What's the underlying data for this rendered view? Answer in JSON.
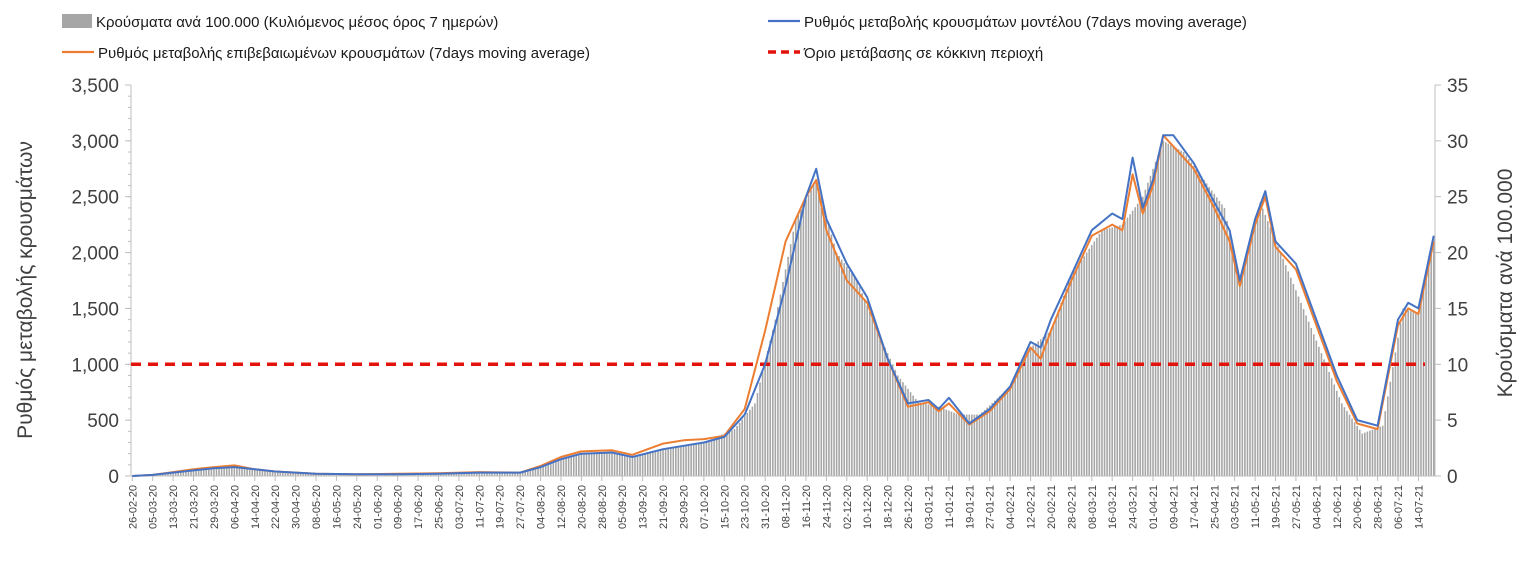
{
  "chart_data": {
    "type": "bar+line",
    "title": "",
    "ylabel_left": "Ρυθμός μεταβολής κρουσμάτων",
    "ylabel_right": "Κρούσματα ανά 100.000",
    "ylim_left": [
      0,
      3500
    ],
    "ylim_right": [
      0,
      35
    ],
    "yticks_left": [
      "0",
      "500",
      "1,000",
      "1,500",
      "2,000",
      "2,500",
      "3,000",
      "3,500"
    ],
    "yticks_right": [
      "0",
      "5",
      "10",
      "15",
      "20",
      "25",
      "30",
      "35"
    ],
    "x_start": "2020-02-26",
    "x_end": "2021-07-20",
    "xticks": [
      "26-02-20",
      "05-03-20",
      "13-03-20",
      "21-03-20",
      "29-03-20",
      "06-04-20",
      "14-04-20",
      "22-04-20",
      "30-04-20",
      "08-05-20",
      "16-05-20",
      "24-05-20",
      "01-06-20",
      "09-06-20",
      "17-06-20",
      "25-06-20",
      "03-07-20",
      "11-07-20",
      "19-07-20",
      "27-07-20",
      "04-08-20",
      "12-08-20",
      "20-08-20",
      "28-08-20",
      "05-09-20",
      "13-09-20",
      "21-09-20",
      "29-09-20",
      "07-10-20",
      "15-10-20",
      "23-10-20",
      "31-10-20",
      "08-11-20",
      "16-11-20",
      "24-11-20",
      "02-12-20",
      "10-12-20",
      "18-12-20",
      "26-12-20",
      "03-01-21",
      "11-01-21",
      "19-01-21",
      "27-01-21",
      "04-02-21",
      "12-02-21",
      "20-02-21",
      "28-02-21",
      "08-03-21",
      "16-03-21",
      "24-03-21",
      "01-04-21",
      "09-04-21",
      "17-04-21",
      "25-04-21",
      "03-05-21",
      "11-05-21",
      "19-05-21",
      "27-05-21",
      "04-06-21",
      "12-06-21",
      "20-06-21",
      "28-06-21",
      "06-07-21",
      "14-07-21"
    ],
    "legend_position": "top",
    "grid": false,
    "threshold": {
      "name": "Όριο μετάβασης σε κόκκινη περιοχή",
      "value": 1000,
      "color": "#e3120b"
    },
    "series": [
      {
        "name": "Κρούσματα ανά 100.000 (Κυλιόμενος μέσος όρος 7 ημερών)",
        "kind": "bar",
        "axis": "right",
        "color": "#a6a6a6",
        "points": [
          [
            "2020-02-26",
            0
          ],
          [
            "2020-03-13",
            0.3
          ],
          [
            "2020-03-29",
            0.7
          ],
          [
            "2020-04-06",
            0.8
          ],
          [
            "2020-04-22",
            0.3
          ],
          [
            "2020-05-16",
            0.1
          ],
          [
            "2020-06-09",
            0.1
          ],
          [
            "2020-07-19",
            0.3
          ],
          [
            "2020-07-27",
            0.3
          ],
          [
            "2020-08-08",
            1.2
          ],
          [
            "2020-08-20",
            2.0
          ],
          [
            "2020-09-01",
            2.1
          ],
          [
            "2020-09-09",
            1.6
          ],
          [
            "2020-09-21",
            2.4
          ],
          [
            "2020-10-07",
            3.0
          ],
          [
            "2020-10-19",
            4.2
          ],
          [
            "2020-10-27",
            6.5
          ],
          [
            "2020-11-04",
            14.0
          ],
          [
            "2020-11-12",
            23.0
          ],
          [
            "2020-11-20",
            26.5
          ],
          [
            "2020-11-28",
            20.0
          ],
          [
            "2020-12-06",
            17.5
          ],
          [
            "2020-12-14",
            13.0
          ],
          [
            "2020-12-22",
            9.0
          ],
          [
            "2020-12-30",
            6.6
          ],
          [
            "2021-01-07",
            6.2
          ],
          [
            "2021-01-15",
            5.5
          ],
          [
            "2021-01-23",
            5.5
          ],
          [
            "2021-02-04",
            8.0
          ],
          [
            "2021-02-12",
            11.5
          ],
          [
            "2021-02-20",
            13.0
          ],
          [
            "2021-02-28",
            18.0
          ],
          [
            "2021-03-12",
            22.0
          ],
          [
            "2021-03-20",
            22.5
          ],
          [
            "2021-03-28",
            25.0
          ],
          [
            "2021-04-05",
            30.0
          ],
          [
            "2021-04-13",
            29.0
          ],
          [
            "2021-04-21",
            26.5
          ],
          [
            "2021-04-29",
            24.0
          ],
          [
            "2021-05-05",
            17.0
          ],
          [
            "2021-05-13",
            24.5
          ],
          [
            "2021-05-21",
            20.0
          ],
          [
            "2021-05-29",
            15.5
          ],
          [
            "2021-06-06",
            11.0
          ],
          [
            "2021-06-14",
            6.5
          ],
          [
            "2021-06-22",
            3.8
          ],
          [
            "2021-06-30",
            4.5
          ],
          [
            "2021-07-08",
            15.0
          ],
          [
            "2021-07-14",
            14.5
          ],
          [
            "2021-07-20",
            21.5
          ]
        ]
      },
      {
        "name": "Ρυθμός μεταβολής κρουσμάτων μοντέλου (7days moving average)",
        "kind": "line",
        "axis": "left",
        "color": "#4472c4",
        "points": [
          [
            "2020-02-26",
            0
          ],
          [
            "2020-03-05",
            10
          ],
          [
            "2020-03-13",
            30
          ],
          [
            "2020-03-21",
            50
          ],
          [
            "2020-03-29",
            70
          ],
          [
            "2020-04-06",
            80
          ],
          [
            "2020-04-14",
            60
          ],
          [
            "2020-04-22",
            40
          ],
          [
            "2020-05-08",
            20
          ],
          [
            "2020-05-24",
            15
          ],
          [
            "2020-06-09",
            15
          ],
          [
            "2020-06-25",
            20
          ],
          [
            "2020-07-11",
            30
          ],
          [
            "2020-07-27",
            30
          ],
          [
            "2020-08-04",
            80
          ],
          [
            "2020-08-12",
            150
          ],
          [
            "2020-08-20",
            200
          ],
          [
            "2020-09-01",
            210
          ],
          [
            "2020-09-09",
            170
          ],
          [
            "2020-09-21",
            240
          ],
          [
            "2020-09-29",
            270
          ],
          [
            "2020-10-07",
            300
          ],
          [
            "2020-10-15",
            350
          ],
          [
            "2020-10-23",
            550
          ],
          [
            "2020-10-31",
            1000
          ],
          [
            "2020-11-08",
            1700
          ],
          [
            "2020-11-16",
            2500
          ],
          [
            "2020-11-20",
            2750
          ],
          [
            "2020-11-24",
            2300
          ],
          [
            "2020-12-02",
            1900
          ],
          [
            "2020-12-10",
            1600
          ],
          [
            "2020-12-18",
            1050
          ],
          [
            "2020-12-26",
            650
          ],
          [
            "2021-01-03",
            680
          ],
          [
            "2021-01-07",
            600
          ],
          [
            "2021-01-11",
            700
          ],
          [
            "2021-01-19",
            470
          ],
          [
            "2021-01-27",
            600
          ],
          [
            "2021-02-04",
            800
          ],
          [
            "2021-02-12",
            1200
          ],
          [
            "2021-02-16",
            1150
          ],
          [
            "2021-02-20",
            1400
          ],
          [
            "2021-02-28",
            1800
          ],
          [
            "2021-03-08",
            2200
          ],
          [
            "2021-03-16",
            2350
          ],
          [
            "2021-03-20",
            2300
          ],
          [
            "2021-03-24",
            2850
          ],
          [
            "2021-03-28",
            2400
          ],
          [
            "2021-04-01",
            2650
          ],
          [
            "2021-04-05",
            3050
          ],
          [
            "2021-04-09",
            3050
          ],
          [
            "2021-04-17",
            2800
          ],
          [
            "2021-04-25",
            2450
          ],
          [
            "2021-05-01",
            2200
          ],
          [
            "2021-05-05",
            1750
          ],
          [
            "2021-05-11",
            2300
          ],
          [
            "2021-05-15",
            2550
          ],
          [
            "2021-05-19",
            2100
          ],
          [
            "2021-05-27",
            1900
          ],
          [
            "2021-06-04",
            1400
          ],
          [
            "2021-06-12",
            900
          ],
          [
            "2021-06-20",
            500
          ],
          [
            "2021-06-28",
            450
          ],
          [
            "2021-07-06",
            1400
          ],
          [
            "2021-07-10",
            1550
          ],
          [
            "2021-07-14",
            1500
          ],
          [
            "2021-07-20",
            2150
          ]
        ]
      },
      {
        "name": "Ρυθμός μεταβολής επιβεβαιωμένων κρουσμάτων (7days moving average)",
        "kind": "line",
        "axis": "left",
        "color": "#ed7d31",
        "points": [
          [
            "2020-02-26",
            0
          ],
          [
            "2020-03-05",
            10
          ],
          [
            "2020-03-13",
            35
          ],
          [
            "2020-03-21",
            60
          ],
          [
            "2020-03-29",
            80
          ],
          [
            "2020-04-06",
            95
          ],
          [
            "2020-04-14",
            60
          ],
          [
            "2020-04-22",
            40
          ],
          [
            "2020-05-08",
            20
          ],
          [
            "2020-05-24",
            15
          ],
          [
            "2020-06-09",
            20
          ],
          [
            "2020-06-25",
            25
          ],
          [
            "2020-07-11",
            35
          ],
          [
            "2020-07-27",
            30
          ],
          [
            "2020-08-04",
            90
          ],
          [
            "2020-08-12",
            170
          ],
          [
            "2020-08-20",
            220
          ],
          [
            "2020-09-01",
            230
          ],
          [
            "2020-09-09",
            190
          ],
          [
            "2020-09-21",
            290
          ],
          [
            "2020-09-29",
            320
          ],
          [
            "2020-10-07",
            330
          ],
          [
            "2020-10-15",
            360
          ],
          [
            "2020-10-23",
            600
          ],
          [
            "2020-10-31",
            1300
          ],
          [
            "2020-11-08",
            2100
          ],
          [
            "2020-11-16",
            2500
          ],
          [
            "2020-11-20",
            2650
          ],
          [
            "2020-11-24",
            2200
          ],
          [
            "2020-12-02",
            1750
          ],
          [
            "2020-12-10",
            1550
          ],
          [
            "2020-12-18",
            1050
          ],
          [
            "2020-12-26",
            620
          ],
          [
            "2021-01-03",
            660
          ],
          [
            "2021-01-07",
            580
          ],
          [
            "2021-01-11",
            650
          ],
          [
            "2021-01-19",
            460
          ],
          [
            "2021-01-27",
            580
          ],
          [
            "2021-02-04",
            780
          ],
          [
            "2021-02-12",
            1150
          ],
          [
            "2021-02-16",
            1050
          ],
          [
            "2021-02-20",
            1300
          ],
          [
            "2021-02-28",
            1750
          ],
          [
            "2021-03-08",
            2150
          ],
          [
            "2021-03-16",
            2250
          ],
          [
            "2021-03-20",
            2200
          ],
          [
            "2021-03-24",
            2700
          ],
          [
            "2021-03-28",
            2350
          ],
          [
            "2021-04-01",
            2600
          ],
          [
            "2021-04-05",
            3050
          ],
          [
            "2021-04-09",
            2950
          ],
          [
            "2021-04-17",
            2750
          ],
          [
            "2021-04-25",
            2400
          ],
          [
            "2021-05-01",
            2100
          ],
          [
            "2021-05-05",
            1700
          ],
          [
            "2021-05-11",
            2250
          ],
          [
            "2021-05-15",
            2500
          ],
          [
            "2021-05-19",
            2050
          ],
          [
            "2021-05-27",
            1850
          ],
          [
            "2021-06-04",
            1350
          ],
          [
            "2021-06-12",
            850
          ],
          [
            "2021-06-20",
            470
          ],
          [
            "2021-06-28",
            420
          ],
          [
            "2021-07-06",
            1350
          ],
          [
            "2021-07-10",
            1500
          ],
          [
            "2021-07-14",
            1450
          ],
          [
            "2021-07-20",
            2100
          ]
        ]
      }
    ]
  }
}
